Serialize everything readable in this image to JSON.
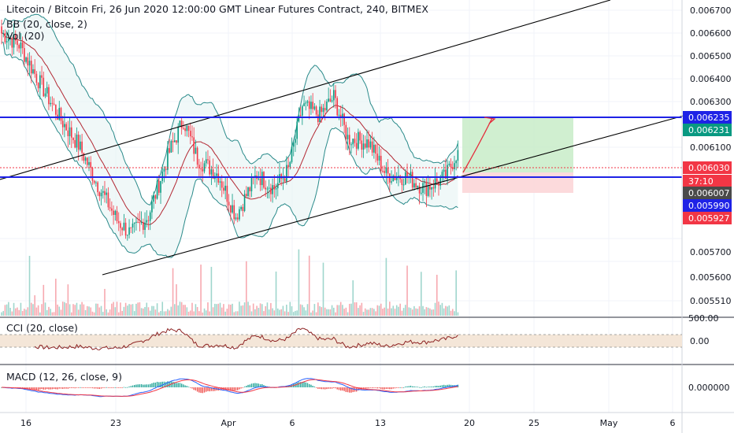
{
  "header": {
    "symbol_line": "Litecoin / Bitcoin Fri, 26 Jun 2020 12:00:00 GMT Linear Futures Contract, 240, BITMEX",
    "bb_label": "BB (20, close, 2)",
    "vol_label": "Vol (20)"
  },
  "cci": {
    "label": "CCI (20, close)",
    "axis_top": "500.00",
    "axis_zero": "0.00"
  },
  "macd": {
    "label": "MACD (12, 26, close, 9)",
    "axis_zero": "0.000000"
  },
  "price_axis": {
    "ticks": [
      "0.006700",
      "0.006600",
      "0.006500",
      "0.006400",
      "0.006300",
      "0.006100",
      "0.005700",
      "0.005600",
      "0.005510"
    ],
    "tags": [
      {
        "text": "0.006235",
        "color": "#1e22e6",
        "text_color": "#ffffff"
      },
      {
        "text": "0.006231",
        "color": "#089981",
        "text_color": "#ffffff"
      },
      {
        "text": "0.006030",
        "color": "#f23645",
        "text_color": "#ffffff"
      },
      {
        "text": "37:10",
        "color": "#f23645",
        "text_color": "#ffffff"
      },
      {
        "text": "0.006007",
        "color": "#4a4a4a",
        "text_color": "#ffffff"
      },
      {
        "text": "0.005990",
        "color": "#1e22e6",
        "text_color": "#ffffff"
      },
      {
        "text": "0.005927",
        "color": "#f23645",
        "text_color": "#ffffff"
      }
    ]
  },
  "time_axis": {
    "labels": [
      "16",
      "23",
      "Apr",
      "6",
      "13",
      "20",
      "25",
      "May",
      "6"
    ]
  },
  "colors": {
    "up": "#089981",
    "down": "#f23645",
    "bb_band": "#2a8a8a",
    "bb_basis": "#b22833",
    "level": "#1e22e6",
    "trend": "#000000",
    "profit": "#c8ecc8",
    "loss": "#fbd3d6"
  },
  "chart_data": {
    "type": "candlestick",
    "timeframe": "240",
    "price_range": [
      0.00549,
      0.00676
    ],
    "horizontal_levels": [
      0.006235,
      0.00599
    ],
    "last_price": 0.00603,
    "position": {
      "entry": 0.006005,
      "target": 0.006235,
      "stop": 0.005948
    },
    "anchors": [
      {
        "x": 0,
        "c": 0.0066
      },
      {
        "x": 10,
        "c": 0.00655
      },
      {
        "x": 22,
        "c": 0.00638
      },
      {
        "x": 34,
        "c": 0.00622
      },
      {
        "x": 44,
        "c": 0.00611
      },
      {
        "x": 54,
        "c": 0.00595
      },
      {
        "x": 66,
        "c": 0.00578
      },
      {
        "x": 74,
        "c": 0.00572
      },
      {
        "x": 84,
        "c": 0.0058
      },
      {
        "x": 96,
        "c": 0.00608
      },
      {
        "x": 104,
        "c": 0.00622
      },
      {
        "x": 112,
        "c": 0.00605
      },
      {
        "x": 124,
        "c": 0.00598
      },
      {
        "x": 134,
        "c": 0.0058
      },
      {
        "x": 146,
        "c": 0.00598
      },
      {
        "x": 156,
        "c": 0.00592
      },
      {
        "x": 164,
        "c": 0.006
      },
      {
        "x": 172,
        "c": 0.00628
      },
      {
        "x": 182,
        "c": 0.00624
      },
      {
        "x": 190,
        "c": 0.00632
      },
      {
        "x": 198,
        "c": 0.00614
      },
      {
        "x": 210,
        "c": 0.00612
      },
      {
        "x": 220,
        "c": 0.00598
      },
      {
        "x": 232,
        "c": 0.00597
      },
      {
        "x": 242,
        "c": 0.00592
      },
      {
        "x": 254,
        "c": 0.00597
      },
      {
        "x": 260,
        "c": 0.00607
      }
    ]
  }
}
